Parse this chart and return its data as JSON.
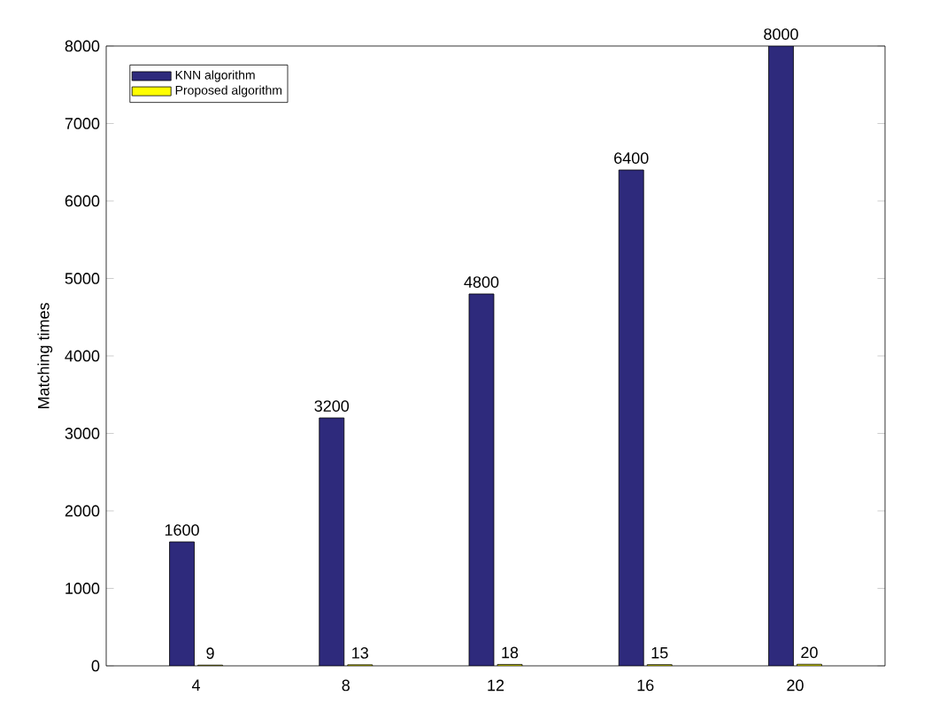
{
  "chart_data": {
    "type": "bar",
    "ylabel": "Matching times",
    "categories": [
      "4",
      "8",
      "12",
      "16",
      "20"
    ],
    "series": [
      {
        "name": "KNN algorithm",
        "color": "#2e2a7c",
        "values": [
          1600,
          3200,
          4800,
          6400,
          8000
        ]
      },
      {
        "name": "Proposed algorithm",
        "color": "#ffff00",
        "values": [
          9,
          13,
          18,
          15,
          20
        ]
      }
    ],
    "ylim": [
      0,
      8000
    ],
    "yticks": [
      0,
      1000,
      2000,
      3000,
      4000,
      5000,
      6000,
      7000,
      8000
    ],
    "data_labels": true,
    "legend": "top left",
    "grid": false
  }
}
